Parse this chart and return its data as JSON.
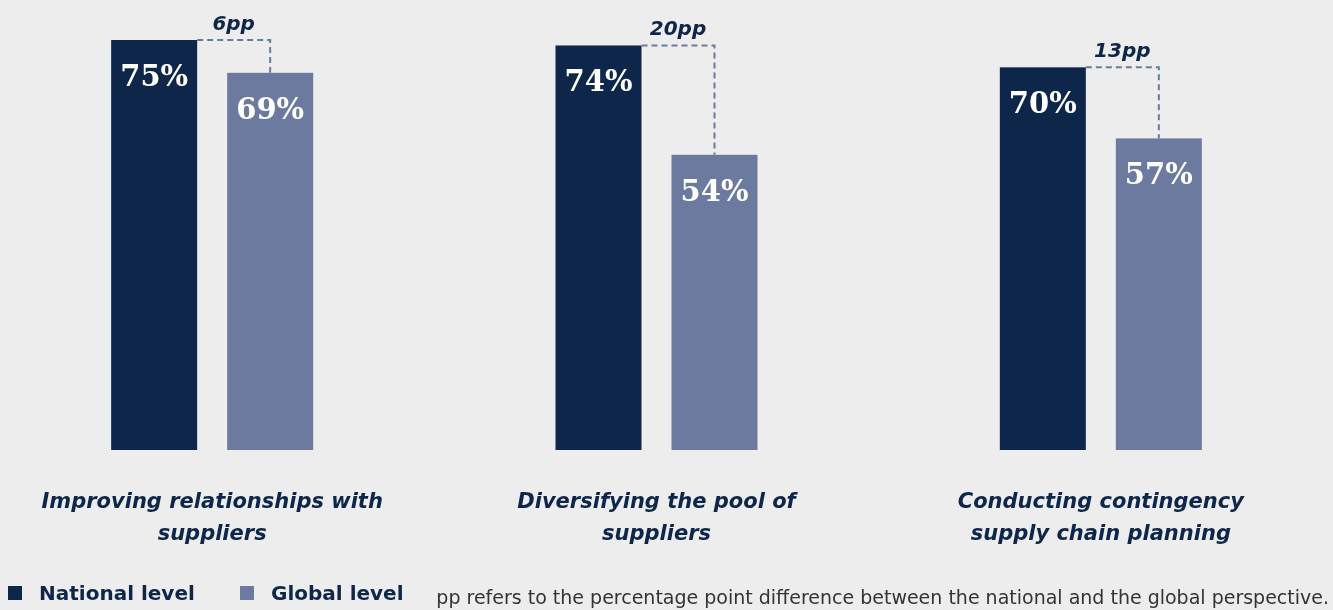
{
  "chart_data": {
    "type": "bar",
    "categories": [
      "Improving relationships with suppliers",
      "Diversifying the pool of suppliers",
      "Conducting contingency supply chain planning"
    ],
    "series": [
      {
        "name": "National level",
        "color": "#0d2649",
        "values": [
          75,
          74,
          70
        ],
        "value_labels": [
          "75%",
          "74%",
          "70%"
        ]
      },
      {
        "name": "Global level",
        "color": "#6b7a9e",
        "values": [
          69,
          54,
          57
        ],
        "value_labels": [
          "69%",
          "54%",
          "57%"
        ]
      }
    ],
    "legend": "bottom left",
    "grid": false,
    "annotations": [
      "6pp",
      "20pp",
      "13pp",
      "pp refers to the percentage point difference between the national and the global perspective."
    ]
  }
}
